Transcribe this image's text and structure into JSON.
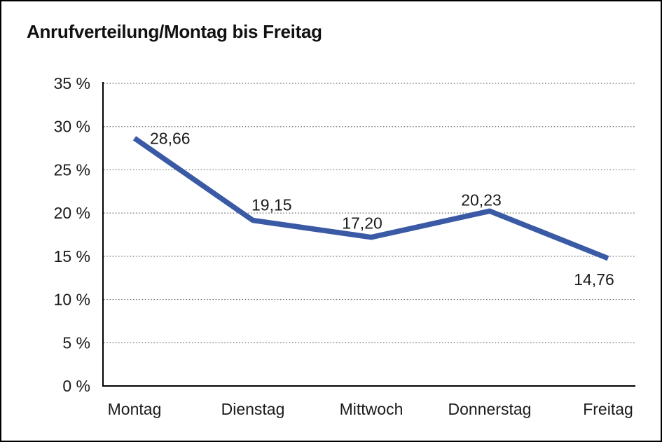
{
  "chart_data": {
    "type": "line",
    "title": "Anrufverteilung/Montag bis Freitag",
    "categories": [
      "Montag",
      "Dienstag",
      "Mittwoch",
      "Donnerstag",
      "Freitag"
    ],
    "series": [
      {
        "name": "Anrufverteilung",
        "values": [
          28.66,
          19.15,
          17.2,
          20.23,
          14.76
        ],
        "value_labels": [
          "28,66",
          "19,15",
          "17,20",
          "20,23",
          "14,76"
        ]
      }
    ],
    "xlabel": "",
    "ylabel": "",
    "ylim": [
      0,
      35
    ],
    "ytick_step": 5,
    "ytick_labels": [
      "0 %",
      "5 %",
      "10 %",
      "15 %",
      "20 %",
      "25 %",
      "30 %",
      "35 %"
    ],
    "grid": "horizontal dotted gridlines at every 5%, solid x-axis baseline",
    "legend_position": "none",
    "colors": {
      "line": "#3A5AA6",
      "axis": "#000000",
      "gridline": "#6e6e6e",
      "text": "#1a1a1a",
      "background": "#ffffff",
      "frame_border": "#000000"
    }
  }
}
